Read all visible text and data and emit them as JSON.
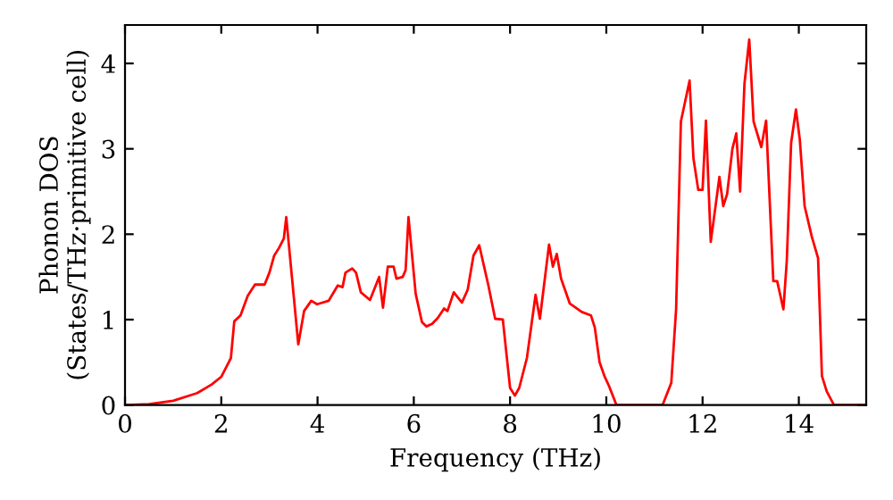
{
  "chart_data": {
    "type": "line",
    "xlabel": "Frequency (THz)",
    "ylabel": "Phonon DOS\n(States/THz·primitive cell)",
    "xlim": [
      0,
      15.4
    ],
    "ylim": [
      0,
      4.45
    ],
    "xticks": [
      0,
      2,
      4,
      6,
      8,
      10,
      12,
      14
    ],
    "yticks": [
      0,
      1,
      2,
      3,
      4
    ],
    "grid": false,
    "legend": false,
    "marker": "none",
    "line_style": "solid",
    "series": [
      {
        "color": "#ff0000",
        "x": [
          0,
          0.5,
          1.0,
          1.5,
          1.8,
          2.0,
          2.2,
          2.27,
          2.4,
          2.55,
          2.7,
          2.9,
          3.0,
          3.1,
          3.2,
          3.3,
          3.35,
          3.6,
          3.72,
          3.87,
          3.99,
          4.23,
          4.42,
          4.52,
          4.58,
          4.72,
          4.8,
          4.9,
          5.09,
          5.28,
          5.36,
          5.46,
          5.58,
          5.64,
          5.77,
          5.83,
          5.89,
          6.04,
          6.17,
          6.26,
          6.38,
          6.5,
          6.63,
          6.7,
          6.83,
          7.0,
          7.12,
          7.24,
          7.36,
          7.55,
          7.69,
          7.85,
          8.0,
          8.1,
          8.19,
          8.35,
          8.53,
          8.62,
          8.81,
          8.89,
          8.97,
          9.06,
          9.24,
          9.49,
          9.68,
          9.76,
          9.86,
          9.96,
          10.05,
          10.21,
          11.17,
          11.35,
          11.45,
          11.55,
          11.73,
          11.81,
          11.91,
          12.0,
          12.07,
          12.17,
          12.35,
          12.43,
          12.51,
          12.62,
          12.7,
          12.78,
          12.87,
          12.97,
          13.06,
          13.22,
          13.32,
          13.47,
          13.55,
          13.68,
          13.75,
          13.84,
          13.94,
          14.02,
          14.12,
          14.27,
          14.4,
          14.48,
          14.58,
          14.73,
          15.4
        ],
        "values": [
          0,
          0.01,
          0.05,
          0.14,
          0.24,
          0.33,
          0.55,
          0.98,
          1.05,
          1.28,
          1.41,
          1.41,
          1.55,
          1.75,
          1.84,
          1.95,
          2.2,
          0.71,
          1.1,
          1.22,
          1.18,
          1.22,
          1.4,
          1.38,
          1.55,
          1.6,
          1.55,
          1.32,
          1.23,
          1.5,
          1.14,
          1.62,
          1.62,
          1.48,
          1.5,
          1.58,
          2.2,
          1.3,
          0.97,
          0.92,
          0.95,
          1.02,
          1.13,
          1.1,
          1.32,
          1.2,
          1.35,
          1.75,
          1.87,
          1.4,
          1.01,
          1.0,
          0.2,
          0.11,
          0.2,
          0.55,
          1.29,
          1.01,
          1.88,
          1.62,
          1.77,
          1.48,
          1.19,
          1.09,
          1.05,
          0.91,
          0.5,
          0.34,
          0.23,
          0,
          0,
          0.26,
          1.12,
          3.32,
          3.8,
          2.89,
          2.52,
          2.52,
          3.33,
          1.91,
          2.67,
          2.33,
          2.47,
          3.0,
          3.18,
          2.5,
          3.76,
          4.28,
          3.32,
          3.02,
          3.33,
          1.45,
          1.45,
          1.12,
          1.69,
          3.07,
          3.46,
          3.11,
          2.33,
          1.97,
          1.72,
          0.34,
          0.16,
          0,
          0
        ]
      }
    ]
  }
}
